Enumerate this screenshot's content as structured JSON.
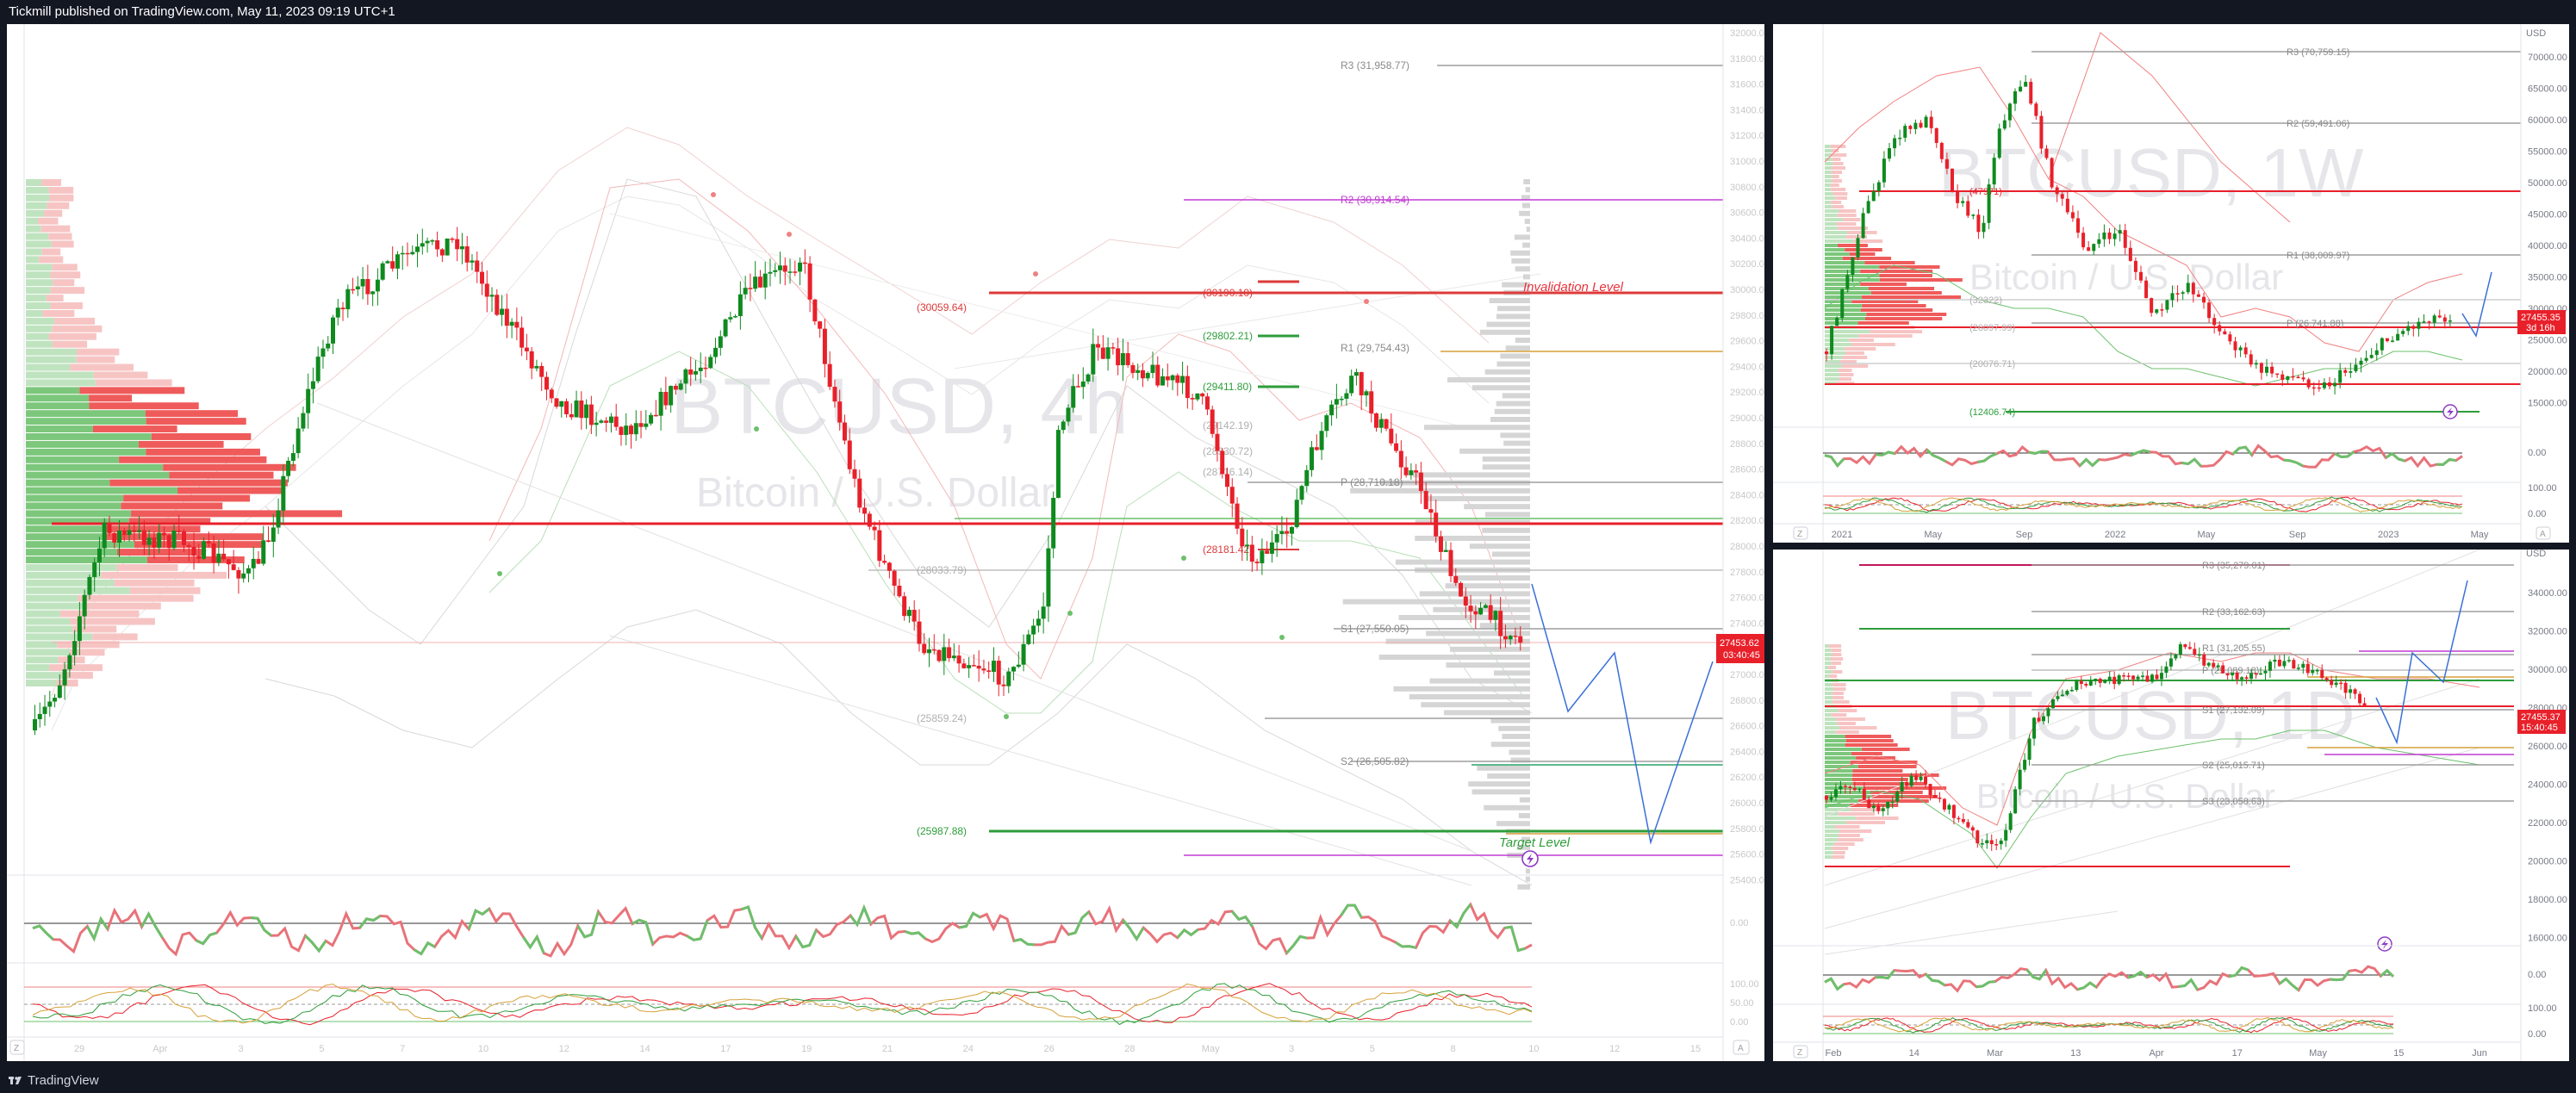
{
  "header": {
    "published": "Tickmill published on TradingView.com, May 11, 2023 09:19 UTC+1"
  },
  "footer": {
    "brand": "TradingView"
  },
  "colors": {
    "bull": "#089981",
    "bull_body": "#0f8a1f",
    "bear": "#e8202a",
    "background": "#ffffff",
    "frame": "#131722",
    "invalid": "#e8333d",
    "target": "#2e9d3a",
    "projection": "#3a6fd8"
  },
  "left_chart": {
    "watermark": {
      "symbol": "BTCUSD, 4h",
      "name": "Bitcoin / U.S. Dollar"
    },
    "y_ticks": [
      "32000.00",
      "31800.00",
      "31600.00",
      "31400.00",
      "31200.00",
      "31000.00",
      "30800.00",
      "30600.00",
      "30400.00",
      "30200.00",
      "30000.00",
      "29800.00",
      "29600.00",
      "29400.00",
      "29200.00",
      "29000.00",
      "28800.00",
      "28600.00",
      "28400.00",
      "28200.00",
      "28000.00",
      "27800.00",
      "27600.00",
      "27400.00",
      "27200.00",
      "27000.00",
      "26800.00",
      "26600.00",
      "26400.00",
      "26200.00",
      "26000.00",
      "25800.00",
      "25600.00",
      "25400.00"
    ],
    "x_ticks": [
      "29",
      "Apr",
      "3",
      "5",
      "7",
      "10",
      "12",
      "14",
      "17",
      "19",
      "21",
      "24",
      "26",
      "28",
      "May",
      "3",
      "5",
      "8",
      "10",
      "12",
      "15"
    ],
    "price_label": {
      "value": "27453.62",
      "countdown": "03:40:45"
    },
    "levels": [
      {
        "text": "R3 (31,958.77)"
      },
      {
        "text": "R2 (30,914.54)"
      },
      {
        "text": "(30190.10)"
      },
      {
        "text": "(30059.64)"
      },
      {
        "text": "(29802.21)"
      },
      {
        "text": "R1 (29,754.43)"
      },
      {
        "text": "(29411.80)"
      },
      {
        "text": "(29142.19)"
      },
      {
        "text": "(28930.72)"
      },
      {
        "text": "(28716.14)"
      },
      {
        "text": "P (28,710.18)"
      },
      {
        "text": "(28181.42)"
      },
      {
        "text": "(28033.79)"
      },
      {
        "text": "S1 (27,550.05)"
      },
      {
        "text": "(25859.24)"
      },
      {
        "text": "S2 (26,505.82)"
      },
      {
        "text": "(25987.88)"
      }
    ],
    "annotations": {
      "invalidation": "Invalidation Level",
      "target": "Target Level"
    },
    "osc1_ticks": [
      "0.00"
    ],
    "osc2_ticks": [
      "100.00",
      "50.00",
      "0.00"
    ]
  },
  "top_right_chart": {
    "watermark": {
      "symbol": "BTCUSD, 1W",
      "name": "Bitcoin / U.S. Dollar"
    },
    "currency": "USD",
    "y_ticks": [
      "70000.00",
      "65000.00",
      "60000.00",
      "55000.00",
      "50000.00",
      "45000.00",
      "40000.00",
      "35000.00",
      "30000.00",
      "25000.00",
      "20000.00",
      "15000.00"
    ],
    "x_ticks": [
      "2021",
      "May",
      "Sep",
      "2022",
      "May",
      "Sep",
      "2023",
      "May"
    ],
    "price_label": {
      "value": "27455.35",
      "countdown": "3d 16h"
    },
    "levels": [
      {
        "text": "R3 (70,759.15)"
      },
      {
        "text": "R2 (59,491.06)"
      },
      {
        "text": "(47971)"
      },
      {
        "text": "R1 (38,009.97)"
      },
      {
        "text": "(32322)"
      },
      {
        "text": "P (26,741.88)"
      },
      {
        "text": "(26097.99)"
      },
      {
        "text": "(20076.71)"
      },
      {
        "text": "(12406.74)"
      }
    ],
    "osc1_ticks": [
      "0.00"
    ],
    "osc2_ticks": [
      "100.00",
      "0.00"
    ]
  },
  "bottom_right_chart": {
    "watermark": {
      "symbol": "BTCUSD, 1D",
      "name": "Bitcoin / U.S. Dollar"
    },
    "currency": "USD",
    "y_ticks": [
      "34000.00",
      "32000.00",
      "30000.00",
      "28000.00",
      "26000.00",
      "24000.00",
      "22000.00",
      "20000.00",
      "18000.00",
      "16000.00"
    ],
    "x_ticks": [
      "Feb",
      "14",
      "Mar",
      "13",
      "Apr",
      "17",
      "May",
      "15",
      "Jun"
    ],
    "price_label": {
      "value": "27455.37",
      "countdown": "15:40:45"
    },
    "levels": [
      {
        "text": "R3 (35,279.01)"
      },
      {
        "text": "R2 (33,162.63)"
      },
      {
        "text": "R1 (31,205.55)"
      },
      {
        "text": "P (29,089.18)"
      },
      {
        "text": "S1 (27,132.09)"
      },
      {
        "text": "S2 (25,015.71)"
      },
      {
        "text": "S3 (23,058.63)"
      }
    ],
    "osc1_ticks": [
      "0.00"
    ],
    "osc2_ticks": [
      "100.00",
      "0.00"
    ]
  }
}
